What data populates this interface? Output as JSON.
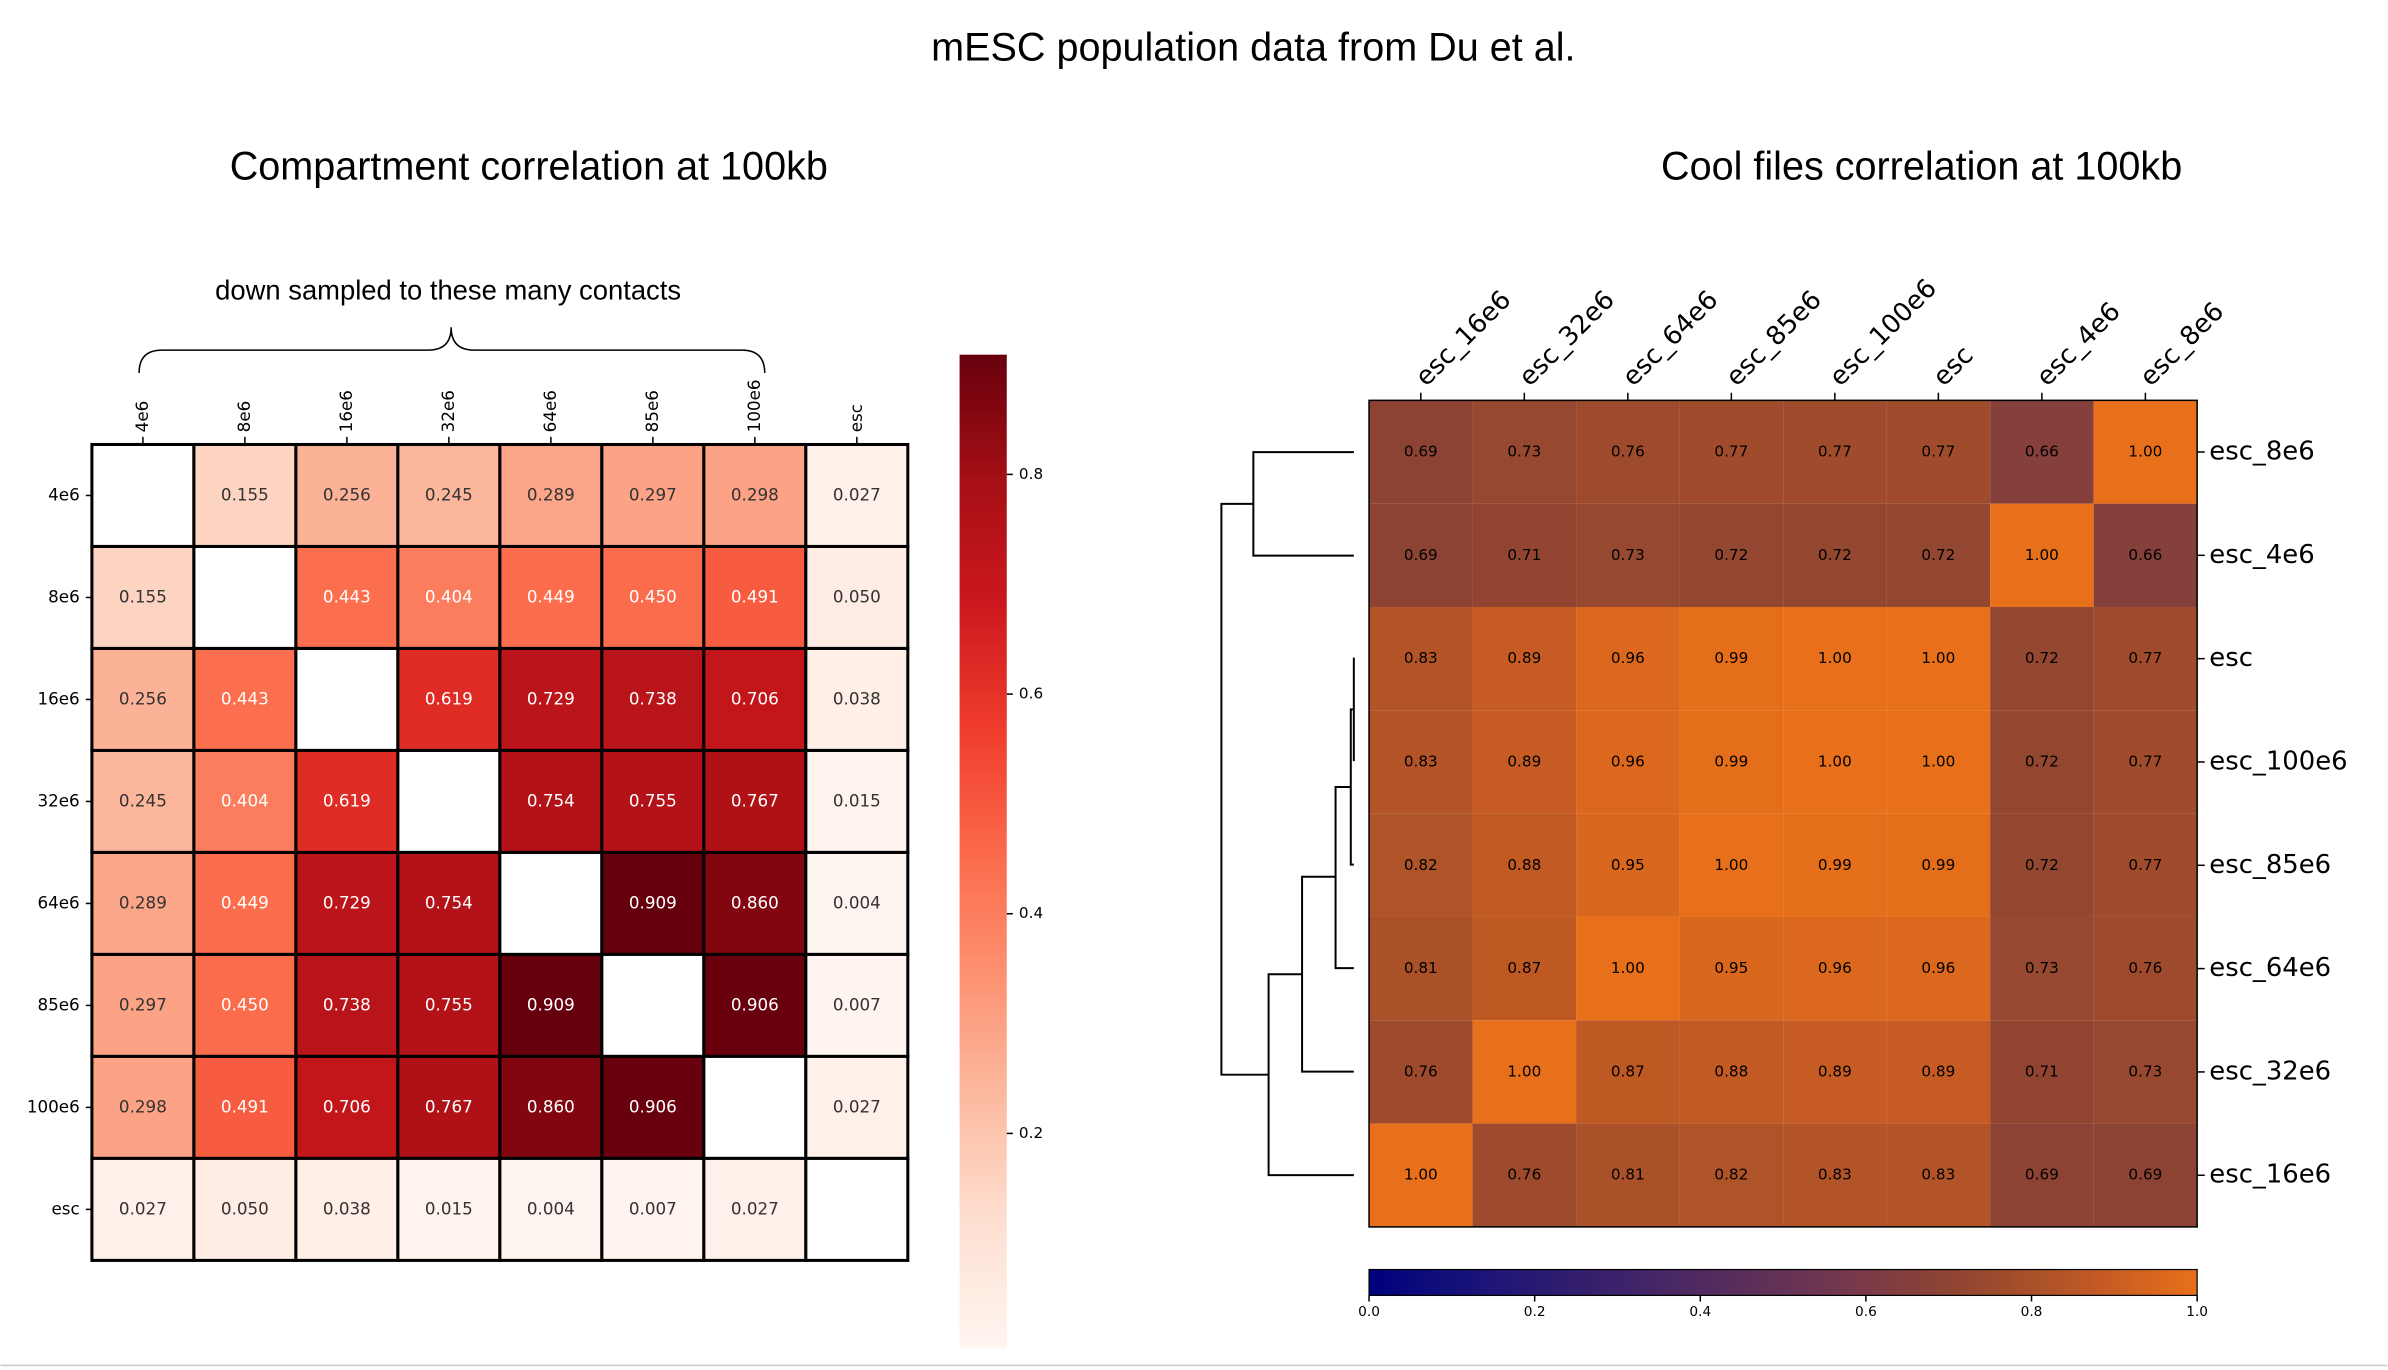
{
  "title": "mESC population data from Du et al.",
  "annotation": "down sampled to these many contacts",
  "chart_data": [
    {
      "type": "heatmap",
      "title": "Compartment correlation at 100kb",
      "x_categories": [
        "4e6",
        "8e6",
        "16e6",
        "32e6",
        "64e6",
        "85e6",
        "100e6",
        "esc"
      ],
      "y_categories": [
        "4e6",
        "8e6",
        "16e6",
        "32e6",
        "64e6",
        "85e6",
        "100e6",
        "esc"
      ],
      "values": [
        [
          null,
          0.155,
          0.256,
          0.245,
          0.289,
          0.297,
          0.298,
          0.027
        ],
        [
          0.155,
          null,
          0.443,
          0.404,
          0.449,
          0.45,
          0.491,
          0.05
        ],
        [
          0.256,
          0.443,
          null,
          0.619,
          0.729,
          0.738,
          0.706,
          0.038
        ],
        [
          0.245,
          0.404,
          0.619,
          null,
          0.754,
          0.755,
          0.767,
          0.015
        ],
        [
          0.289,
          0.449,
          0.729,
          0.754,
          null,
          0.909,
          0.86,
          0.004
        ],
        [
          0.297,
          0.45,
          0.738,
          0.755,
          0.909,
          null,
          0.906,
          0.007
        ],
        [
          0.298,
          0.491,
          0.706,
          0.767,
          0.86,
          0.906,
          null,
          0.027
        ],
        [
          0.027,
          0.05,
          0.038,
          0.015,
          0.004,
          0.007,
          0.027,
          null
        ]
      ],
      "value_labels": [
        [
          null,
          "0.155",
          "0.256",
          "0.245",
          "0.289",
          "0.297",
          "0.298",
          "0.027"
        ],
        [
          "0.155",
          null,
          "0.443",
          "0.404",
          "0.449",
          "0.450",
          "0.491",
          "0.050"
        ],
        [
          "0.256",
          "0.443",
          null,
          "0.619",
          "0.729",
          "0.738",
          "0.706",
          "0.038"
        ],
        [
          "0.245",
          "0.404",
          "0.619",
          null,
          "0.754",
          "0.755",
          "0.767",
          "0.015"
        ],
        [
          "0.289",
          "0.449",
          "0.729",
          "0.754",
          null,
          "0.909",
          "0.860",
          "0.004"
        ],
        [
          "0.297",
          "0.450",
          "0.738",
          "0.755",
          "0.909",
          null,
          "0.906",
          "0.007"
        ],
        [
          "0.298",
          "0.491",
          "0.706",
          "0.767",
          "0.860",
          "0.906",
          null,
          "0.027"
        ],
        [
          "0.027",
          "0.050",
          "0.038",
          "0.015",
          "0.004",
          "0.007",
          "0.027",
          null
        ]
      ],
      "clim": [
        0.004,
        0.909
      ],
      "colorbar_ticks": [
        0.2,
        0.4,
        0.6,
        0.8
      ],
      "colorscale": [
        "#fff5f0",
        "#fee0d2",
        "#fcbba1",
        "#fc9272",
        "#fb6a4a",
        "#ef3b2c",
        "#cb181d",
        "#a50f15",
        "#67000d"
      ]
    },
    {
      "type": "heatmap",
      "title": "Cool files correlation at 100kb",
      "x_categories": [
        "esc_16e6",
        "esc_32e6",
        "esc_64e6",
        "esc_85e6",
        "esc_100e6",
        "esc",
        "esc_4e6",
        "esc_8e6"
      ],
      "y_categories": [
        "esc_8e6",
        "esc_4e6",
        "esc",
        "esc_100e6",
        "esc_85e6",
        "esc_64e6",
        "esc_32e6",
        "esc_16e6"
      ],
      "values": [
        [
          0.69,
          0.73,
          0.76,
          0.77,
          0.77,
          0.77,
          0.66,
          1
        ],
        [
          0.69,
          0.71,
          0.73,
          0.72,
          0.72,
          0.72,
          1,
          0.66
        ],
        [
          0.83,
          0.89,
          0.96,
          0.99,
          1,
          1,
          0.72,
          0.77
        ],
        [
          0.83,
          0.89,
          0.96,
          0.99,
          1,
          1,
          0.72,
          0.77
        ],
        [
          0.82,
          0.88,
          0.95,
          1,
          0.99,
          0.99,
          0.72,
          0.77
        ],
        [
          0.81,
          0.87,
          1,
          0.95,
          0.96,
          0.96,
          0.73,
          0.76
        ],
        [
          0.76,
          1,
          0.87,
          0.88,
          0.89,
          0.89,
          0.71,
          0.73
        ],
        [
          1,
          0.76,
          0.81,
          0.82,
          0.83,
          0.83,
          0.69,
          0.69
        ]
      ],
      "value_labels": [
        [
          "0.69",
          "0.73",
          "0.76",
          "0.77",
          "0.77",
          "0.77",
          "0.66",
          "1.00"
        ],
        [
          "0.69",
          "0.71",
          "0.73",
          "0.72",
          "0.72",
          "0.72",
          "1.00",
          "0.66"
        ],
        [
          "0.83",
          "0.89",
          "0.96",
          "0.99",
          "1.00",
          "1.00",
          "0.72",
          "0.77"
        ],
        [
          "0.83",
          "0.89",
          "0.96",
          "0.99",
          "1.00",
          "1.00",
          "0.72",
          "0.77"
        ],
        [
          "0.82",
          "0.88",
          "0.95",
          "1.00",
          "0.99",
          "0.99",
          "0.72",
          "0.77"
        ],
        [
          "0.81",
          "0.87",
          "1.00",
          "0.95",
          "0.96",
          "0.96",
          "0.73",
          "0.76"
        ],
        [
          "0.76",
          "1.00",
          "0.87",
          "0.88",
          "0.89",
          "0.89",
          "0.71",
          "0.73"
        ],
        [
          "1.00",
          "0.76",
          "0.81",
          "0.82",
          "0.83",
          "0.83",
          "0.69",
          "0.69"
        ]
      ],
      "clim": [
        0,
        1
      ],
      "colorbar_ticks": [
        {
          "value": 0,
          "label": "0.0"
        },
        0.2,
        0.4,
        0.6,
        0.8,
        {
          "value": 1,
          "label": "1.0"
        }
      ],
      "colorscale": [
        "#00007f",
        "#14107a",
        "#281a72",
        "#3c226a",
        "#502a60",
        "#643256",
        "#7a3a48",
        "#8e4432",
        "#a8502a",
        "#c95d22",
        "#e8701a"
      ]
    }
  ]
}
